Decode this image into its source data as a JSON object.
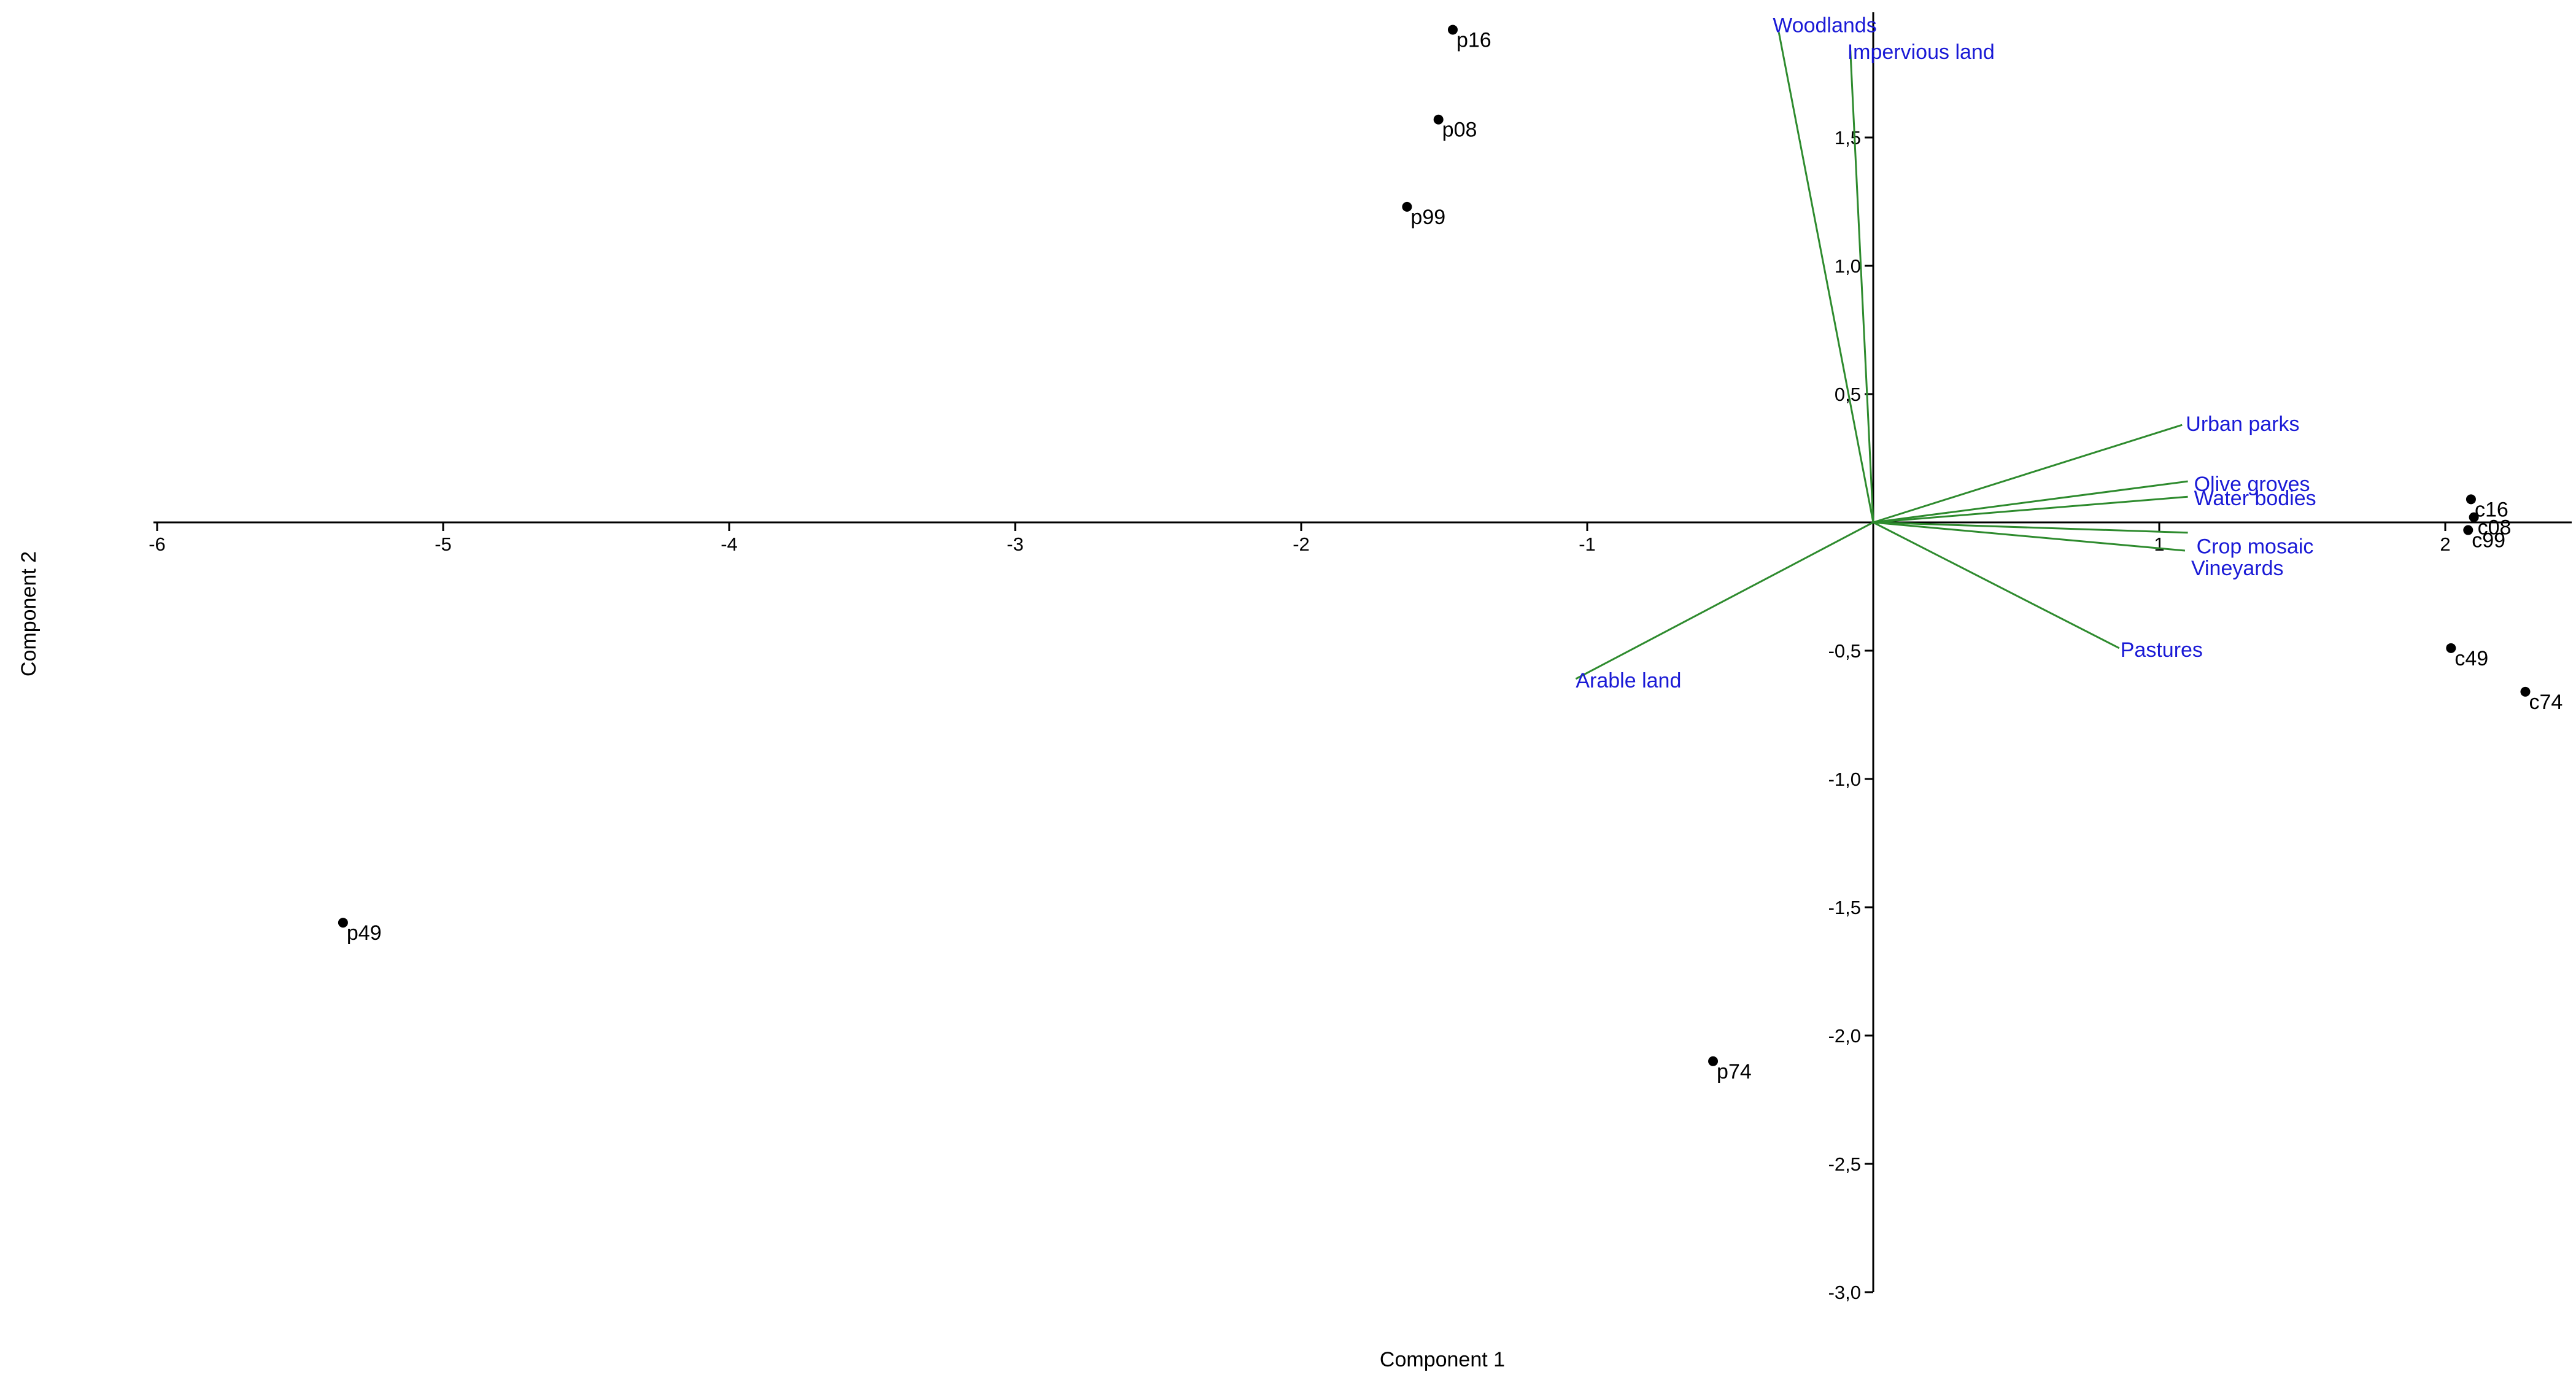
{
  "chart_data": {
    "type": "scatter",
    "subtype": "pca-biplot",
    "title": "",
    "xlabel": "Component 1",
    "ylabel": "Component 2",
    "xlim": [
      -6,
      2.45
    ],
    "ylim": [
      -3.0,
      1.92
    ],
    "x_ticks": [
      -6,
      -5,
      -4,
      -3,
      -2,
      -1,
      1,
      2
    ],
    "x_tick_labels": [
      "-6",
      "-5",
      "-4",
      "-3",
      "-2",
      "-1",
      "1",
      "2"
    ],
    "y_ticks": [
      1.5,
      1.0,
      0.5,
      -0.5,
      -1.0,
      -1.5,
      -2.0,
      -2.5,
      -3.0
    ],
    "y_tick_labels": [
      "1,5",
      "1,0",
      "0,5",
      "-0,5",
      "-1,0",
      "-1,5",
      "-2,0",
      "-2,5",
      "-3,0"
    ],
    "grid": false,
    "colors": {
      "points": "#000000",
      "vectors": "#2e8b2e",
      "vector_labels": "#1a1ad6",
      "axes": "#000000"
    },
    "points": [
      {
        "label": "p16",
        "x": -1.47,
        "y": 1.92
      },
      {
        "label": "p08",
        "x": -1.52,
        "y": 1.57
      },
      {
        "label": "p99",
        "x": -1.63,
        "y": 1.23
      },
      {
        "label": "p49",
        "x": -5.35,
        "y": -1.56
      },
      {
        "label": "p74",
        "x": -0.56,
        "y": -2.1
      },
      {
        "label": "c16",
        "x": 2.09,
        "y": 0.09
      },
      {
        "label": "c08",
        "x": 2.1,
        "y": 0.02
      },
      {
        "label": "c99",
        "x": 2.08,
        "y": -0.03
      },
      {
        "label": "c49",
        "x": 2.02,
        "y": -0.49
      },
      {
        "label": "c74",
        "x": 2.28,
        "y": -0.66
      }
    ],
    "vectors": [
      {
        "label": "Woodlands",
        "x": -0.33,
        "y": 1.91
      },
      {
        "label": "Impervious land",
        "x": -0.08,
        "y": 1.84
      },
      {
        "label": "Urban parks",
        "x": 1.08,
        "y": 0.38
      },
      {
        "label": "Olive groves",
        "x": 1.1,
        "y": 0.16
      },
      {
        "label": "Water bodies",
        "x": 1.1,
        "y": 0.1
      },
      {
        "label": "Crop mosaic",
        "x": 1.1,
        "y": -0.04
      },
      {
        "label": "Vineyards",
        "x": 1.09,
        "y": -0.11
      },
      {
        "label": "Pastures",
        "x": 0.86,
        "y": -0.49
      },
      {
        "label": "Arable land",
        "x": -1.04,
        "y": -0.61
      }
    ]
  }
}
